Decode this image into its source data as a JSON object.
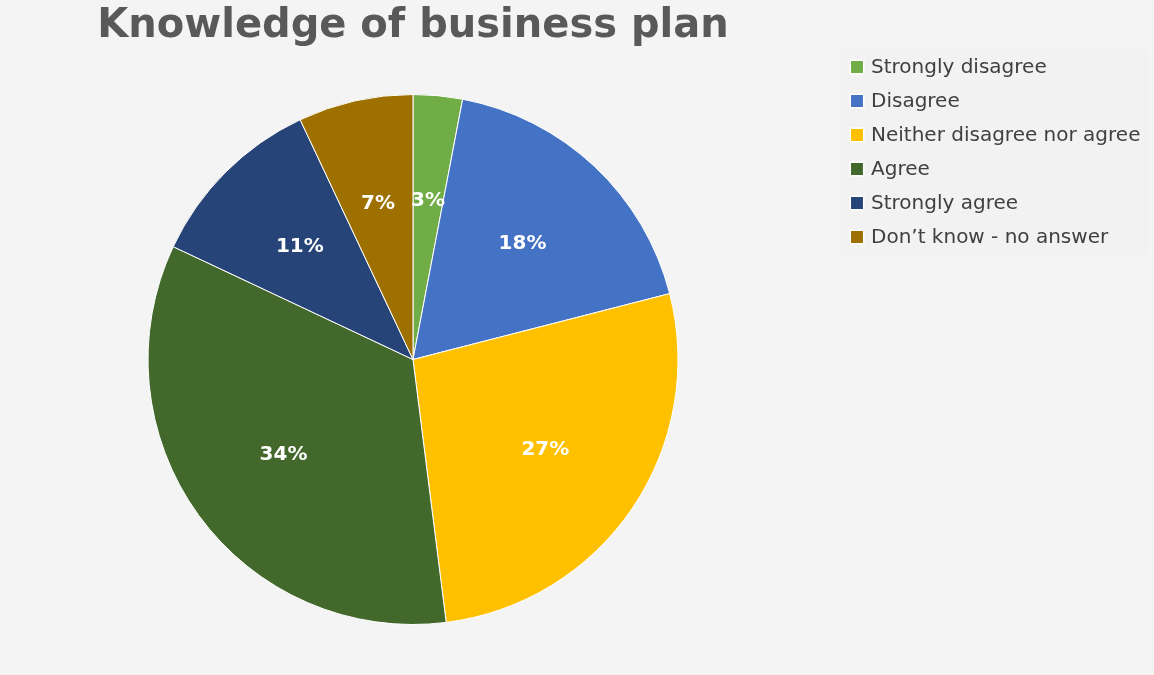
{
  "chart_data": {
    "type": "pie",
    "title": "Knowledge of business plan",
    "categories": [
      "Strongly disagree",
      "Disagree",
      "Neither disagree nor agree",
      "Agree",
      "Strongly agree",
      "Don’t know - no answer"
    ],
    "values": [
      3,
      18,
      27,
      34,
      11,
      7
    ],
    "colors": [
      "#70ad47",
      "#4472c4",
      "#ffc000",
      "#43682b",
      "#264478",
      "#9e7000"
    ],
    "value_labels": [
      "3%",
      "18%",
      "27%",
      "34%",
      "11%",
      "7%"
    ],
    "legend": "right"
  }
}
